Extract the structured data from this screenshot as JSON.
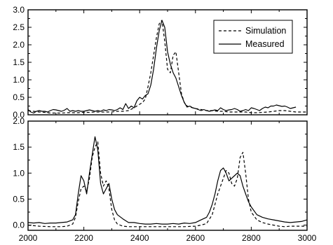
{
  "chart_data": [
    {
      "type": "line",
      "title": "",
      "xlabel": "",
      "ylabel": "",
      "xlim": [
        2000,
        3000
      ],
      "ylim": [
        0.0,
        3.0
      ],
      "yticks": [
        0.0,
        0.5,
        1.0,
        1.5,
        2.0,
        2.5,
        3.0
      ],
      "ytick_labels": [
        "0.0",
        "0.5",
        "1.0",
        "1.5",
        "2.0",
        "2.5",
        "3.0"
      ],
      "legend": {
        "position": "top-right",
        "entries": [
          "Simulation",
          "Measured"
        ]
      },
      "grid": false,
      "series": [
        {
          "name": "Simulation",
          "style": "dashed",
          "x": [
            2000,
            2020,
            2040,
            2060,
            2080,
            2100,
            2120,
            2140,
            2160,
            2180,
            2200,
            2220,
            2240,
            2260,
            2280,
            2300,
            2320,
            2340,
            2360,
            2380,
            2390,
            2400,
            2410,
            2420,
            2430,
            2440,
            2450,
            2460,
            2470,
            2480,
            2490,
            2500,
            2510,
            2520,
            2530,
            2540,
            2550,
            2560,
            2570,
            2580,
            2600,
            2620,
            2640,
            2660,
            2680,
            2700,
            2720,
            2740,
            2760,
            2780,
            2800,
            2820,
            2840,
            2860,
            2880,
            2900,
            2920,
            2940,
            2960,
            2980,
            3000
          ],
          "values": [
            0.12,
            0.1,
            0.08,
            0.07,
            0.05,
            0.05,
            0.05,
            0.06,
            0.06,
            0.06,
            0.07,
            0.07,
            0.08,
            0.08,
            0.08,
            0.08,
            0.1,
            0.1,
            0.12,
            0.2,
            0.25,
            0.3,
            0.35,
            0.45,
            0.8,
            1.2,
            1.7,
            2.2,
            2.6,
            2.7,
            2.1,
            1.3,
            1.2,
            1.7,
            1.8,
            1.2,
            0.6,
            0.35,
            0.25,
            0.22,
            0.18,
            0.15,
            0.12,
            0.12,
            0.1,
            0.1,
            0.08,
            0.08,
            0.08,
            0.08,
            0.06,
            0.06,
            0.07,
            0.08,
            0.1,
            0.12,
            0.12,
            0.1,
            0.08,
            0.08,
            0.08
          ]
        },
        {
          "name": "Measured",
          "style": "solid",
          "x": [
            2000,
            2010,
            2020,
            2030,
            2040,
            2050,
            2060,
            2070,
            2080,
            2090,
            2100,
            2110,
            2120,
            2130,
            2140,
            2150,
            2160,
            2170,
            2180,
            2190,
            2200,
            2210,
            2220,
            2230,
            2240,
            2250,
            2260,
            2270,
            2280,
            2290,
            2300,
            2310,
            2320,
            2330,
            2340,
            2350,
            2360,
            2370,
            2380,
            2390,
            2400,
            2410,
            2420,
            2430,
            2440,
            2450,
            2460,
            2470,
            2480,
            2490,
            2500,
            2510,
            2520,
            2530,
            2540,
            2550,
            2560,
            2570,
            2580,
            2590,
            2600,
            2610,
            2620,
            2630,
            2640,
            2650,
            2660,
            2670,
            2680,
            2690,
            2700,
            2710,
            2720,
            2730,
            2740,
            2750,
            2760,
            2770,
            2780,
            2790,
            2800,
            2810,
            2820,
            2830,
            2840,
            2850,
            2860,
            2870,
            2880,
            2890,
            2900,
            2910,
            2920,
            2930,
            2940,
            2950,
            2960
          ],
          "values": [
            0.15,
            0.08,
            0.05,
            0.1,
            0.12,
            0.1,
            0.1,
            0.08,
            0.12,
            0.15,
            0.14,
            0.12,
            0.1,
            0.13,
            0.18,
            0.1,
            0.12,
            0.1,
            0.12,
            0.1,
            0.1,
            0.12,
            0.14,
            0.12,
            0.1,
            0.12,
            0.1,
            0.14,
            0.12,
            0.15,
            0.14,
            0.12,
            0.15,
            0.2,
            0.15,
            0.32,
            0.18,
            0.25,
            0.2,
            0.4,
            0.5,
            0.45,
            0.55,
            0.6,
            0.85,
            1.3,
            1.9,
            2.4,
            2.7,
            2.5,
            1.8,
            1.45,
            1.2,
            1.05,
            0.8,
            0.55,
            0.35,
            0.22,
            0.25,
            0.2,
            0.18,
            0.15,
            0.12,
            0.15,
            0.12,
            0.1,
            0.12,
            0.14,
            0.12,
            0.2,
            0.15,
            0.12,
            0.14,
            0.15,
            0.18,
            0.15,
            0.1,
            0.12,
            0.15,
            0.12,
            0.2,
            0.18,
            0.15,
            0.12,
            0.18,
            0.22,
            0.2,
            0.25,
            0.25,
            0.28,
            0.26,
            0.24,
            0.25,
            0.22,
            0.18,
            0.2,
            0.22
          ]
        }
      ]
    },
    {
      "type": "line",
      "title": "",
      "xlabel": "",
      "ylabel": "",
      "xlim": [
        2000,
        3000
      ],
      "ylim": [
        -0.1,
        2.0
      ],
      "xticks": [
        2000,
        2200,
        2400,
        2600,
        2800,
        3000
      ],
      "xtick_labels": [
        "2000",
        "2200",
        "2400",
        "2600",
        "2800",
        "3000"
      ],
      "yticks": [
        0.0,
        0.5,
        1.0,
        1.5,
        2.0
      ],
      "ytick_labels": [
        "0.0",
        "0.5",
        "1.0",
        "1.5",
        "2.0"
      ],
      "grid": false,
      "series": [
        {
          "name": "Simulation",
          "style": "dashed",
          "x": [
            2000,
            2040,
            2080,
            2120,
            2140,
            2160,
            2170,
            2180,
            2190,
            2200,
            2210,
            2220,
            2230,
            2240,
            2250,
            2260,
            2270,
            2280,
            2290,
            2300,
            2310,
            2320,
            2340,
            2360,
            2400,
            2440,
            2480,
            2520,
            2560,
            2600,
            2620,
            2640,
            2660,
            2670,
            2680,
            2690,
            2700,
            2710,
            2720,
            2730,
            2740,
            2750,
            2760,
            2770,
            2780,
            2790,
            2800,
            2820,
            2840,
            2860,
            2880,
            2900,
            2920,
            2940,
            2960,
            2980,
            3000
          ],
          "values": [
            0.0,
            -0.02,
            -0.03,
            -0.03,
            -0.02,
            0.02,
            0.15,
            0.45,
            0.7,
            0.75,
            0.65,
            0.9,
            1.3,
            1.5,
            1.6,
            1.0,
            0.75,
            0.85,
            0.7,
            0.3,
            0.1,
            0.02,
            -0.02,
            -0.03,
            -0.03,
            -0.03,
            -0.03,
            -0.03,
            -0.03,
            -0.02,
            0.0,
            0.03,
            0.2,
            0.4,
            0.6,
            0.75,
            0.9,
            1.05,
            1.0,
            0.8,
            0.75,
            0.9,
            1.3,
            1.4,
            1.0,
            0.5,
            0.25,
            0.1,
            0.05,
            0.02,
            0.0,
            -0.02,
            -0.03,
            -0.02,
            -0.02,
            -0.02,
            -0.02
          ]
        },
        {
          "name": "Measured",
          "style": "solid",
          "x": [
            2000,
            2020,
            2040,
            2060,
            2080,
            2100,
            2120,
            2140,
            2160,
            2170,
            2180,
            2190,
            2200,
            2210,
            2220,
            2230,
            2240,
            2250,
            2260,
            2270,
            2280,
            2290,
            2300,
            2310,
            2320,
            2340,
            2360,
            2380,
            2400,
            2420,
            2440,
            2460,
            2480,
            2500,
            2520,
            2540,
            2560,
            2580,
            2600,
            2620,
            2640,
            2650,
            2660,
            2670,
            2680,
            2690,
            2700,
            2710,
            2720,
            2730,
            2740,
            2750,
            2760,
            2770,
            2780,
            2790,
            2800,
            2820,
            2840,
            2860,
            2880,
            2900,
            2920,
            2940,
            2960,
            2980,
            3000
          ],
          "values": [
            0.05,
            0.04,
            0.05,
            0.03,
            0.04,
            0.04,
            0.05,
            0.06,
            0.1,
            0.2,
            0.6,
            0.95,
            0.85,
            0.6,
            1.0,
            1.35,
            1.7,
            1.45,
            0.8,
            0.6,
            0.7,
            0.8,
            0.5,
            0.3,
            0.2,
            0.12,
            0.05,
            0.05,
            0.03,
            0.02,
            0.02,
            0.03,
            0.02,
            0.02,
            0.03,
            0.02,
            0.04,
            0.03,
            0.05,
            0.1,
            0.15,
            0.25,
            0.4,
            0.6,
            0.85,
            1.05,
            1.1,
            1.0,
            0.85,
            0.9,
            0.95,
            1.0,
            0.95,
            0.75,
            0.6,
            0.45,
            0.35,
            0.2,
            0.15,
            0.12,
            0.1,
            0.08,
            0.06,
            0.05,
            0.06,
            0.07,
            0.1
          ]
        }
      ]
    }
  ]
}
